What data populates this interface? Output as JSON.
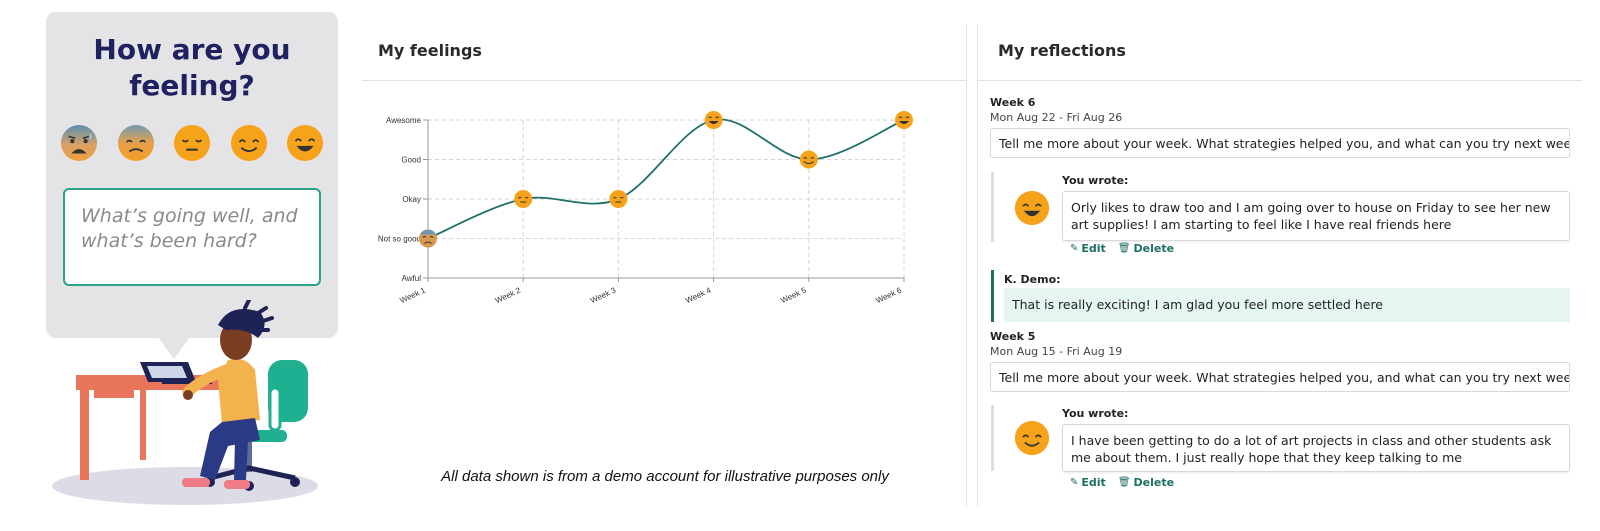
{
  "checkin": {
    "title_line1": "How are you",
    "title_line2": "feeling?",
    "moods": [
      "awful-face-icon",
      "not-so-good-face-icon",
      "okay-face-icon",
      "good-face-icon",
      "awesome-face-icon"
    ],
    "input_placeholder": "What’s going well, and what’s been hard?"
  },
  "feelings": {
    "heading": "My feelings"
  },
  "chart_data": {
    "type": "line",
    "categories": [
      "Week 1",
      "Week 2",
      "Week 3",
      "Week 4",
      "Week 5",
      "Week 6"
    ],
    "y_levels": [
      "Awful",
      "Not so good",
      "Okay",
      "Good",
      "Awesome"
    ],
    "series": [
      {
        "values": [
          1,
          2,
          2,
          4,
          3,
          4
        ]
      }
    ],
    "ylim": [
      0,
      4
    ],
    "grid": true,
    "line_color": "#1e6f6a",
    "marker_color": "#f7a21b"
  },
  "disclaimer": "All data shown is from a demo account for illustrative purposes only",
  "reflections": {
    "heading": "My reflections",
    "weeks": [
      {
        "label": "Week 6",
        "dates": "Mon Aug 22 - Fri Aug 26",
        "prompt": "Tell me more about your week. What strategies helped you, and what can you try next week?",
        "you_wrote_label": "You wrote:",
        "entry": "Orly likes to draw too and I am going over to house on Friday to see her new art supplies! I am starting to feel like I have real friends here",
        "mood_icon": "awesome-face-icon",
        "edit_label": "Edit",
        "delete_label": "Delete",
        "coach_name": "K. Demo:",
        "coach_comment": "That is really exciting! I am glad you feel more settled here"
      },
      {
        "label": "Week 5",
        "dates": "Mon Aug 15 - Fri Aug 19",
        "prompt": "Tell me more about your week. What strategies helped you, and what can you try next week?",
        "you_wrote_label": "You wrote:",
        "entry": "I have been getting to do a lot of art projects in class and other students ask me about them. I just really hope that they keep talking to me",
        "mood_icon": "good-face-icon",
        "edit_label": "Edit",
        "delete_label": "Delete"
      }
    ]
  },
  "colors": {
    "accent": "#1e6f62",
    "teal_border": "#2aa38e",
    "emoji_yellow": "#f7a21b",
    "title_navy": "#1f2160",
    "coach_bg": "#e5f5f2"
  }
}
